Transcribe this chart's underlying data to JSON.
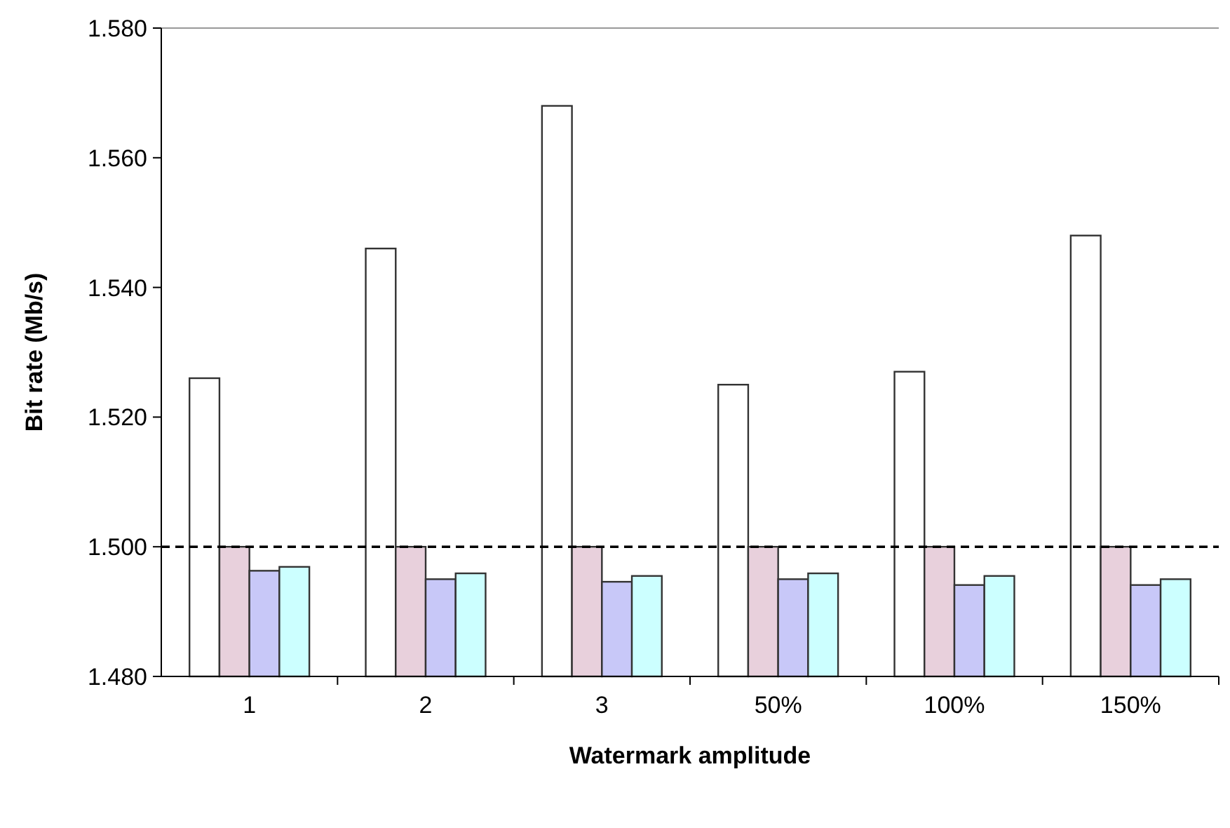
{
  "chart_data": {
    "type": "bar",
    "xlabel": "Watermark amplitude",
    "ylabel": "Bit rate (Mb/s)",
    "categories": [
      "1",
      "2",
      "3",
      "50%",
      "100%",
      "150%"
    ],
    "series": [
      {
        "color": "#ffffff",
        "values": [
          1.526,
          1.546,
          1.568,
          1.525,
          1.527,
          1.548
        ]
      },
      {
        "color": "#e8d0dc",
        "values": [
          1.5,
          1.5,
          1.5,
          1.5,
          1.5,
          1.5
        ]
      },
      {
        "color": "#c8c8f8",
        "values": [
          1.4963,
          1.495,
          1.4946,
          1.495,
          1.4941,
          1.4941
        ]
      },
      {
        "color": "#ccffff",
        "values": [
          1.4969,
          1.4959,
          1.4955,
          1.4959,
          1.4955,
          1.495
        ]
      }
    ],
    "ylim": [
      1.48,
      1.58
    ],
    "yticks": [
      {
        "value": 1.48,
        "label": "1.480"
      },
      {
        "value": 1.5,
        "label": "1.500"
      },
      {
        "value": 1.52,
        "label": "1.520"
      },
      {
        "value": 1.54,
        "label": "1.540"
      },
      {
        "value": 1.56,
        "label": "1.560"
      },
      {
        "value": 1.58,
        "label": "1.580"
      }
    ],
    "ref_lines": [
      {
        "axis": "y",
        "value": 1.5,
        "line_style": "dashed",
        "color": "#000000"
      }
    ],
    "grid": false
  }
}
